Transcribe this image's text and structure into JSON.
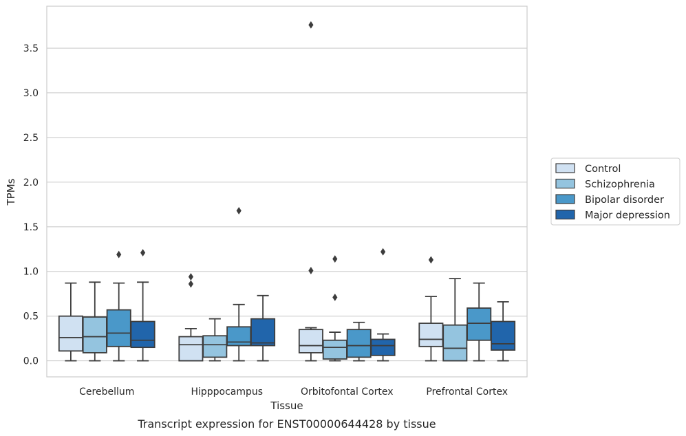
{
  "chart_data": {
    "type": "box",
    "title": "",
    "caption": "Transcript expression for ENST00000644428 by tissue",
    "xlabel": "Tissue",
    "ylabel": "TPMs",
    "ylim": [
      -0.18,
      3.97
    ],
    "yticks": [
      "0.0",
      "0.5",
      "1.0",
      "1.5",
      "2.0",
      "2.5",
      "3.0",
      "3.5"
    ],
    "ytick_values": [
      0.0,
      0.5,
      1.0,
      1.5,
      2.0,
      2.5,
      3.0,
      3.5
    ],
    "grid": true,
    "legend_position": "right",
    "categories": [
      "Cerebellum",
      "Hipppocampus",
      "Orbitofontal Cortex",
      "Prefrontal Cortex"
    ],
    "series": [
      {
        "name": "Control",
        "color": "#d0e1f2",
        "boxes": [
          {
            "whisker_low": 0.0,
            "q1": 0.11,
            "median": 0.26,
            "q3": 0.5,
            "whisker_high": 0.87,
            "outliers": []
          },
          {
            "whisker_low": 0.0,
            "q1": 0.0,
            "median": 0.18,
            "q3": 0.27,
            "whisker_high": 0.36,
            "outliers": [
              0.86,
              0.94
            ]
          },
          {
            "whisker_low": 0.0,
            "q1": 0.09,
            "median": 0.17,
            "q3": 0.35,
            "whisker_high": 0.37,
            "outliers": [
              1.01,
              3.76
            ]
          },
          {
            "whisker_low": 0.0,
            "q1": 0.16,
            "median": 0.24,
            "q3": 0.42,
            "whisker_high": 0.72,
            "outliers": [
              1.13
            ]
          }
        ]
      },
      {
        "name": "Schizophrenia",
        "color": "#94c4df",
        "boxes": [
          {
            "whisker_low": 0.0,
            "q1": 0.09,
            "median": 0.27,
            "q3": 0.49,
            "whisker_high": 0.88,
            "outliers": []
          },
          {
            "whisker_low": 0.0,
            "q1": 0.04,
            "median": 0.18,
            "q3": 0.28,
            "whisker_high": 0.47,
            "outliers": []
          },
          {
            "whisker_low": 0.0,
            "q1": 0.02,
            "median": 0.15,
            "q3": 0.23,
            "whisker_high": 0.32,
            "outliers": [
              0.71,
              1.14
            ]
          },
          {
            "whisker_low": 0.0,
            "q1": 0.0,
            "median": 0.14,
            "q3": 0.4,
            "whisker_high": 0.92,
            "outliers": []
          }
        ]
      },
      {
        "name": "Bipolar disorder",
        "color": "#4a98c9",
        "boxes": [
          {
            "whisker_low": 0.0,
            "q1": 0.16,
            "median": 0.31,
            "q3": 0.57,
            "whisker_high": 0.87,
            "outliers": [
              1.19
            ]
          },
          {
            "whisker_low": 0.0,
            "q1": 0.17,
            "median": 0.21,
            "q3": 0.38,
            "whisker_high": 0.63,
            "outliers": [
              1.68
            ]
          },
          {
            "whisker_low": 0.0,
            "q1": 0.04,
            "median": 0.17,
            "q3": 0.35,
            "whisker_high": 0.43,
            "outliers": []
          },
          {
            "whisker_low": 0.0,
            "q1": 0.23,
            "median": 0.42,
            "q3": 0.59,
            "whisker_high": 0.87,
            "outliers": []
          }
        ]
      },
      {
        "name": "Major depression",
        "color": "#2165ab",
        "boxes": [
          {
            "whisker_low": 0.0,
            "q1": 0.15,
            "median": 0.23,
            "q3": 0.44,
            "whisker_high": 0.88,
            "outliers": [
              1.21
            ]
          },
          {
            "whisker_low": 0.0,
            "q1": 0.17,
            "median": 0.2,
            "q3": 0.47,
            "whisker_high": 0.73,
            "outliers": []
          },
          {
            "whisker_low": 0.0,
            "q1": 0.06,
            "median": 0.17,
            "q3": 0.24,
            "whisker_high": 0.3,
            "outliers": [
              1.22
            ]
          },
          {
            "whisker_low": 0.0,
            "q1": 0.12,
            "median": 0.19,
            "q3": 0.44,
            "whisker_high": 0.66,
            "outliers": []
          }
        ]
      }
    ]
  }
}
